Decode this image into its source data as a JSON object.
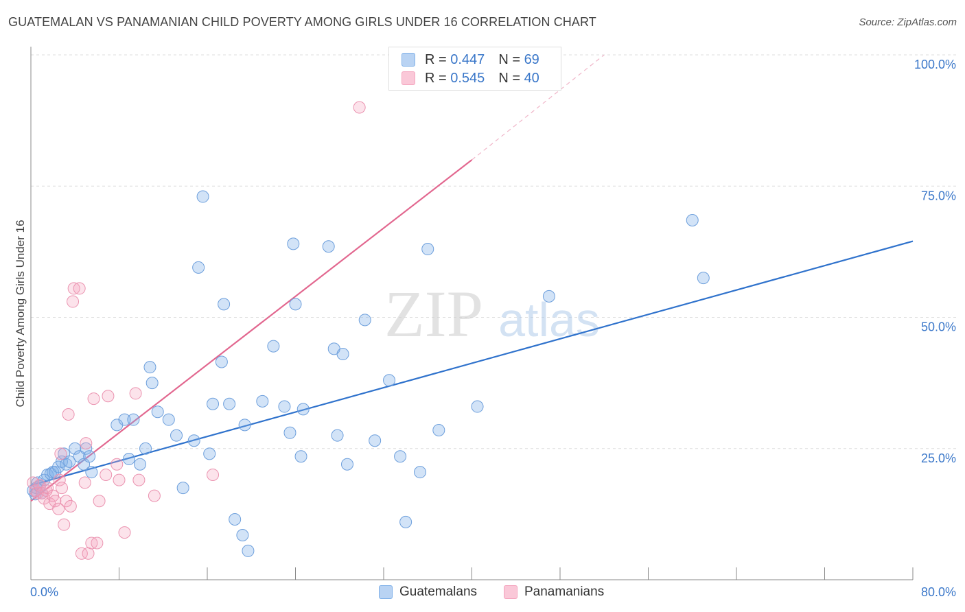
{
  "title": "GUATEMALAN VS PANAMANIAN CHILD POVERTY AMONG GIRLS UNDER 16 CORRELATION CHART",
  "source": "Source: ZipAtlas.com",
  "legend_top": {
    "row1": {
      "r_label": "R = ",
      "r_value": "0.447",
      "n_label": "N = ",
      "n_value": "69"
    },
    "row2": {
      "r_label": "R = ",
      "r_value": "0.545",
      "n_label": "N = ",
      "n_value": "40"
    }
  },
  "watermark": {
    "zip": "ZIP",
    "atlas": "atlas"
  },
  "chart_data": {
    "type": "scatter",
    "title": "GUATEMALAN VS PANAMANIAN CHILD POVERTY AMONG GIRLS UNDER 16 CORRELATION CHART",
    "xlabel": "",
    "ylabel": "Child Poverty Among Girls Under 16",
    "xlim": [
      0,
      80
    ],
    "ylim": [
      0,
      100
    ],
    "x_tick_labels": [
      "0.0%",
      "80.0%"
    ],
    "y_tick_labels": [
      "25.0%",
      "50.0%",
      "75.0%",
      "100.0%"
    ],
    "y_ticks": [
      25,
      50,
      75,
      100
    ],
    "grid": true,
    "legend_position": "top-center",
    "colors": {
      "Guatemalans": "#7fb0e8",
      "Panamanians": "#f4a3bd",
      "Guatemalans_line": "#2f72cc",
      "Panamanians_line": "#e2678f"
    },
    "series": [
      {
        "name": "Guatemalans",
        "r": 0.447,
        "n": 69,
        "trend": {
          "x": [
            0,
            80
          ],
          "y": [
            18.0,
            64.5
          ]
        },
        "points": [
          [
            0.2,
            17.0
          ],
          [
            0.4,
            16.3
          ],
          [
            0.5,
            17.5
          ],
          [
            0.6,
            18.5
          ],
          [
            0.8,
            17.8
          ],
          [
            1.0,
            16.5
          ],
          [
            1.2,
            19.0
          ],
          [
            1.5,
            20.0
          ],
          [
            1.8,
            20.2
          ],
          [
            2.0,
            20.5
          ],
          [
            2.2,
            20.5
          ],
          [
            2.5,
            21.5
          ],
          [
            2.8,
            22.5
          ],
          [
            3.0,
            24.0
          ],
          [
            3.2,
            22.0
          ],
          [
            3.5,
            22.5
          ],
          [
            4.0,
            25.0
          ],
          [
            4.4,
            23.5
          ],
          [
            4.8,
            22.0
          ],
          [
            5.0,
            25.0
          ],
          [
            5.3,
            23.5
          ],
          [
            5.5,
            20.5
          ],
          [
            7.8,
            29.5
          ],
          [
            8.5,
            30.5
          ],
          [
            8.9,
            23.0
          ],
          [
            9.3,
            30.5
          ],
          [
            9.9,
            22.0
          ],
          [
            10.4,
            25.0
          ],
          [
            10.8,
            40.5
          ],
          [
            11.0,
            37.5
          ],
          [
            11.5,
            32.0
          ],
          [
            12.5,
            30.5
          ],
          [
            13.2,
            27.5
          ],
          [
            13.8,
            17.5
          ],
          [
            14.8,
            26.5
          ],
          [
            15.2,
            59.5
          ],
          [
            15.6,
            73.0
          ],
          [
            16.2,
            24.0
          ],
          [
            16.5,
            33.5
          ],
          [
            17.3,
            41.5
          ],
          [
            17.5,
            52.5
          ],
          [
            18.0,
            33.5
          ],
          [
            18.5,
            11.5
          ],
          [
            19.2,
            8.5
          ],
          [
            19.4,
            29.5
          ],
          [
            19.7,
            5.5
          ],
          [
            21.0,
            34.0
          ],
          [
            22.0,
            44.5
          ],
          [
            23.0,
            33.0
          ],
          [
            23.5,
            28.0
          ],
          [
            23.8,
            64.0
          ],
          [
            24.0,
            52.5
          ],
          [
            24.5,
            23.5
          ],
          [
            24.7,
            32.5
          ],
          [
            27.0,
            63.5
          ],
          [
            27.5,
            44.0
          ],
          [
            27.8,
            27.5
          ],
          [
            28.3,
            43.0
          ],
          [
            28.7,
            22.0
          ],
          [
            30.3,
            49.5
          ],
          [
            31.2,
            26.5
          ],
          [
            32.5,
            38.0
          ],
          [
            33.5,
            23.5
          ],
          [
            34.0,
            11.0
          ],
          [
            35.3,
            20.5
          ],
          [
            36.0,
            63.0
          ],
          [
            37.0,
            28.5
          ],
          [
            40.5,
            33.0
          ],
          [
            47.0,
            54.0
          ],
          [
            60.0,
            68.5
          ],
          [
            61.0,
            57.5
          ]
        ]
      },
      {
        "name": "Panamanians",
        "r": 0.545,
        "n": 40,
        "trend": {
          "x": [
            0,
            40
          ],
          "y": [
            15.0,
            80.0
          ],
          "dashed_extension": {
            "x": [
              40,
              52
            ],
            "y": [
              80.0,
              100.0
            ]
          }
        },
        "points": [
          [
            0.2,
            18.5
          ],
          [
            0.4,
            17.0
          ],
          [
            0.6,
            16.5
          ],
          [
            0.8,
            18.0
          ],
          [
            1.0,
            16.5
          ],
          [
            1.2,
            15.5
          ],
          [
            1.4,
            17.0
          ],
          [
            1.5,
            17.5
          ],
          [
            1.7,
            14.5
          ],
          [
            2.0,
            16.0
          ],
          [
            2.2,
            15.0
          ],
          [
            2.5,
            13.5
          ],
          [
            2.6,
            19.0
          ],
          [
            2.7,
            24.0
          ],
          [
            2.8,
            17.5
          ],
          [
            3.0,
            10.5
          ],
          [
            3.2,
            15.0
          ],
          [
            3.4,
            31.5
          ],
          [
            3.6,
            14.0
          ],
          [
            3.8,
            53.0
          ],
          [
            3.9,
            55.5
          ],
          [
            4.4,
            55.5
          ],
          [
            4.6,
            5.0
          ],
          [
            4.9,
            18.5
          ],
          [
            5.0,
            26.0
          ],
          [
            5.2,
            5.0
          ],
          [
            5.5,
            7.0
          ],
          [
            5.7,
            34.5
          ],
          [
            6.0,
            7.0
          ],
          [
            6.2,
            15.0
          ],
          [
            6.8,
            20.0
          ],
          [
            7.0,
            35.0
          ],
          [
            7.8,
            22.0
          ],
          [
            8.0,
            19.0
          ],
          [
            8.5,
            9.0
          ],
          [
            9.5,
            35.5
          ],
          [
            9.8,
            19.0
          ],
          [
            11.2,
            16.0
          ],
          [
            16.5,
            20.0
          ],
          [
            29.8,
            90.0
          ]
        ]
      }
    ]
  },
  "bottom_legend": {
    "guatemalans": "Guatemalans",
    "panamanians": "Panamanians"
  }
}
